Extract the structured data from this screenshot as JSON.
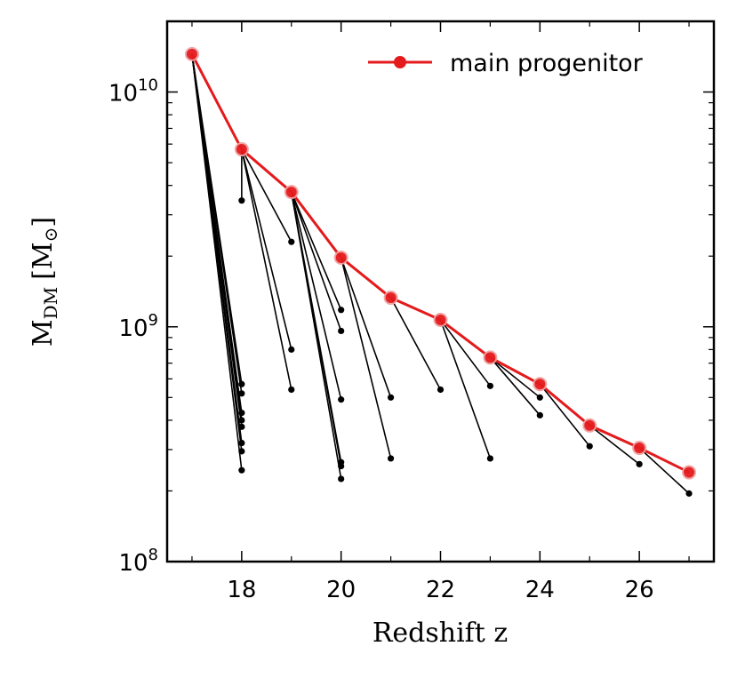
{
  "chart_data": {
    "type": "line",
    "title": "",
    "xlabel": "Redshift z",
    "ylabel_main": "M",
    "ylabel_sub": "DM",
    "ylabel_unit_open": "[M",
    "ylabel_unit_sym": "⊙",
    "ylabel_unit_close": "]",
    "xlim": [
      16.5,
      27.5
    ],
    "ylim": [
      100000000.0,
      20000000000.0
    ],
    "yscale": "log",
    "x_ticks": [
      18,
      20,
      22,
      24,
      26
    ],
    "x_tick_labels": [
      "18",
      "20",
      "22",
      "24",
      "26"
    ],
    "y_ticks": [
      {
        "value": 100000000.0,
        "base": "10",
        "exp": "8"
      },
      {
        "value": 1000000000.0,
        "base": "10",
        "exp": "9"
      },
      {
        "value": 10000000000.0,
        "base": "10",
        "exp": "10"
      }
    ],
    "legend": {
      "label": "main progenitor",
      "placement": "top-right"
    },
    "main_progenitor": {
      "name": "main progenitor",
      "color": "#e41a1c",
      "x": [
        17,
        18,
        19,
        20,
        21,
        22,
        23,
        24,
        25,
        26,
        27
      ],
      "y": [
        14500000000.0,
        5700000000.0,
        3750000000.0,
        1970000000.0,
        1330000000.0,
        1070000000.0,
        740000000.0,
        570000000.0,
        380000000.0,
        305000000.0,
        240000000.0
      ]
    },
    "mergers": [
      {
        "from_z": 17,
        "z": 18,
        "mass": 570000000.0
      },
      {
        "from_z": 17,
        "z": 18,
        "mass": 520000000.0
      },
      {
        "from_z": 17,
        "z": 18,
        "mass": 430000000.0
      },
      {
        "from_z": 17,
        "z": 18,
        "mass": 400000000.0
      },
      {
        "from_z": 17,
        "z": 18,
        "mass": 375000000.0
      },
      {
        "from_z": 17,
        "z": 18,
        "mass": 320000000.0
      },
      {
        "from_z": 17,
        "z": 18,
        "mass": 295000000.0
      },
      {
        "from_z": 17,
        "z": 18,
        "mass": 245000000.0
      },
      {
        "from_z": 18,
        "z": 18,
        "mass": 3450000000.0
      },
      {
        "from_z": 18,
        "z": 19,
        "mass": 2300000000.0
      },
      {
        "from_z": 18,
        "z": 19,
        "mass": 800000000.0
      },
      {
        "from_z": 18,
        "z": 19,
        "mass": 540000000.0
      },
      {
        "from_z": 19,
        "z": 20,
        "mass": 1180000000.0
      },
      {
        "from_z": 19,
        "z": 20,
        "mass": 960000000.0
      },
      {
        "from_z": 19,
        "z": 20,
        "mass": 490000000.0
      },
      {
        "from_z": 19,
        "z": 20,
        "mass": 265000000.0
      },
      {
        "from_z": 19,
        "z": 20,
        "mass": 255000000.0
      },
      {
        "from_z": 19,
        "z": 20,
        "mass": 225000000.0
      },
      {
        "from_z": 20,
        "z": 21,
        "mass": 500000000.0
      },
      {
        "from_z": 20,
        "z": 21,
        "mass": 275000000.0
      },
      {
        "from_z": 21,
        "z": 22,
        "mass": 540000000.0
      },
      {
        "from_z": 22,
        "z": 23,
        "mass": 560000000.0
      },
      {
        "from_z": 22,
        "z": 23,
        "mass": 275000000.0
      },
      {
        "from_z": 23,
        "z": 24,
        "mass": 500000000.0
      },
      {
        "from_z": 23,
        "z": 24,
        "mass": 420000000.0
      },
      {
        "from_z": 24,
        "z": 25,
        "mass": 310000000.0
      },
      {
        "from_z": 25,
        "z": 26,
        "mass": 260000000.0
      },
      {
        "from_z": 26,
        "z": 27,
        "mass": 195000000.0
      }
    ]
  }
}
